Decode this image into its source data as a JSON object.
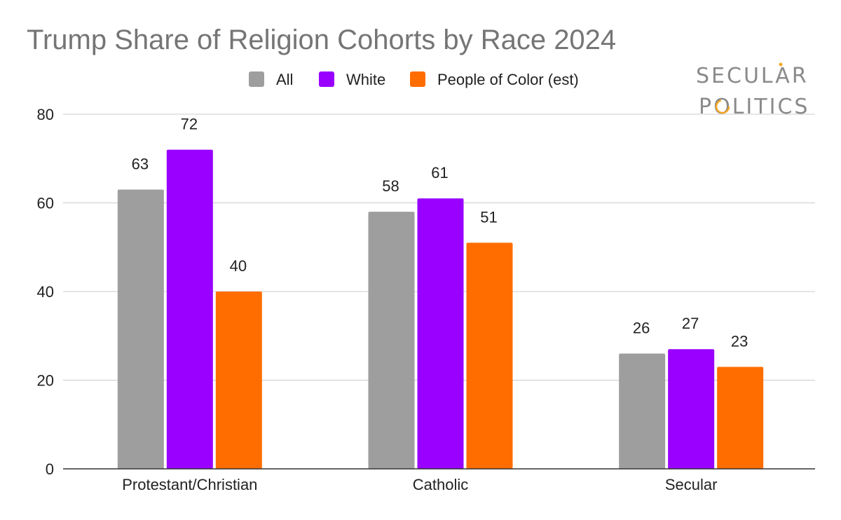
{
  "logo": {
    "line1": "SECULAR",
    "line2": "POLITICS",
    "dot_color": "#f5a623",
    "ring_color": "#f5a623"
  },
  "chart_data": {
    "type": "bar",
    "title": "Trump Share of Religion Cohorts by Race 2024",
    "xlabel": "",
    "ylabel": "",
    "categories": [
      "Protestant/Christian",
      "Catholic",
      "Secular"
    ],
    "series": [
      {
        "name": "All",
        "color": "#9e9e9e",
        "values": [
          63,
          58,
          26
        ]
      },
      {
        "name": "White",
        "color": "#9900ff",
        "values": [
          72,
          61,
          27
        ]
      },
      {
        "name": "People of Color (est)",
        "color": "#ff6d01",
        "values": [
          40,
          51,
          23
        ]
      }
    ],
    "ylim": [
      0,
      80
    ],
    "yticks": [
      0,
      20,
      40,
      60,
      80
    ],
    "grid": true,
    "legend_position": "top"
  }
}
